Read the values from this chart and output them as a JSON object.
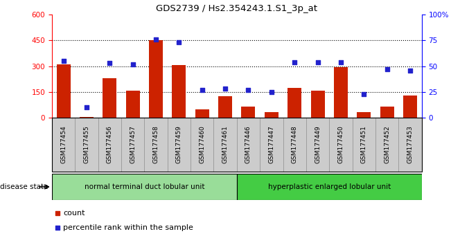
{
  "title": "GDS2739 / Hs2.354243.1.S1_3p_at",
  "categories": [
    "GSM177454",
    "GSM177455",
    "GSM177456",
    "GSM177457",
    "GSM177458",
    "GSM177459",
    "GSM177460",
    "GSM177461",
    "GSM177446",
    "GSM177447",
    "GSM177448",
    "GSM177449",
    "GSM177450",
    "GSM177451",
    "GSM177452",
    "GSM177453"
  ],
  "counts": [
    310,
    5,
    230,
    157,
    450,
    305,
    50,
    125,
    65,
    30,
    175,
    157,
    295,
    30,
    65,
    130
  ],
  "percentiles": [
    55,
    10,
    53,
    52,
    76,
    73,
    27,
    28,
    27,
    25,
    54,
    54,
    54,
    23,
    47,
    46
  ],
  "group1_label": "normal terminal duct lobular unit",
  "group2_label": "hyperplastic enlarged lobular unit",
  "group1_count": 8,
  "group2_count": 8,
  "bar_color": "#cc2200",
  "dot_color": "#2222cc",
  "ylim_left": [
    0,
    600
  ],
  "ylim_right": [
    0,
    100
  ],
  "yticks_left": [
    0,
    150,
    300,
    450,
    600
  ],
  "yticks_right": [
    0,
    25,
    50,
    75,
    100
  ],
  "grid_values": [
    150,
    300,
    450
  ],
  "legend_count_label": "count",
  "legend_pct_label": "percentile rank within the sample",
  "disease_state_label": "disease state",
  "group1_color": "#99dd99",
  "group2_color": "#44cc44",
  "bar_width": 0.6,
  "background_color": "#ffffff",
  "plot_bg": "#ffffff",
  "xtick_box_color": "#cccccc",
  "xtick_box_edge": "#999999"
}
